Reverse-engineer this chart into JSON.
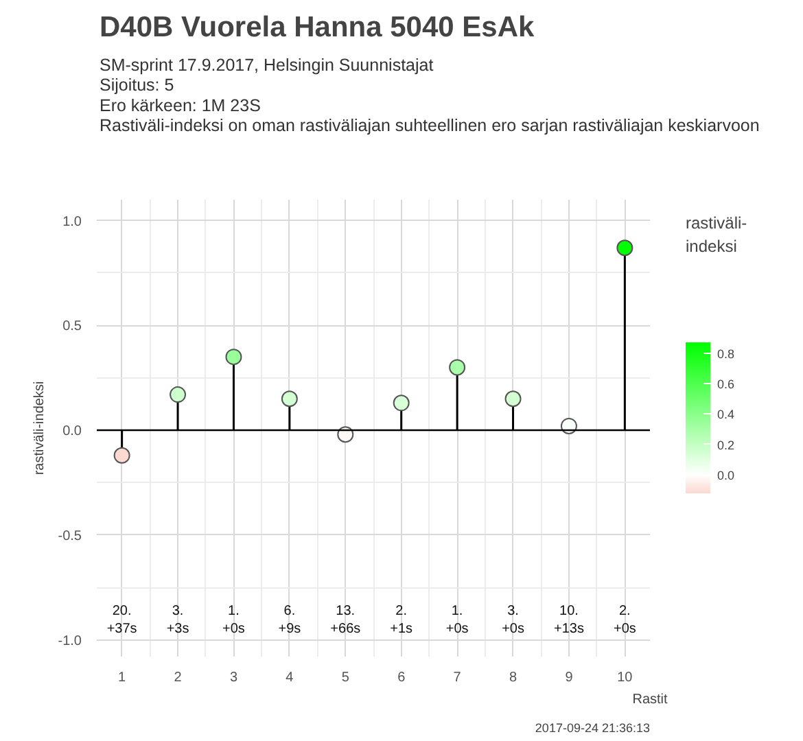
{
  "chart_data": {
    "type": "lollipop",
    "title": "D40B Vuorela Hanna 5040 EsAk",
    "subtitle": "SM-sprint 17.9.2017, Helsingin Suunnistajat\nSijoitus: 5\nEro kärkeen: 1M 23S\nRastiväli-indeksi on oman rastiväliajan suhteellinen ero sarjan rastiväliajan keskiarvoon",
    "xlabel": "Rastit",
    "ylabel": "rastiväli-indeksi",
    "clabel": "rastiväli-\nindeksi",
    "x": [
      1,
      2,
      3,
      4,
      5,
      6,
      7,
      8,
      9,
      10
    ],
    "values": [
      -0.12,
      0.17,
      0.35,
      0.15,
      -0.02,
      0.13,
      0.3,
      0.15,
      0.02,
      0.87
    ],
    "cvalues": [
      -0.12,
      0.17,
      0.35,
      0.15,
      -0.02,
      0.13,
      0.3,
      0.15,
      0.02,
      0.87
    ],
    "clim": [
      -0.12,
      0.87
    ],
    "cticks": [
      {
        "value": 0,
        "label": "0.0"
      },
      0.2,
      0.4,
      0.6,
      0.8
    ],
    "xlim": [
      0.55,
      10.45
    ],
    "xticks": [
      1,
      2,
      3,
      4,
      5,
      6,
      7,
      8,
      9,
      10
    ],
    "ylim": [
      -1.08,
      1.1
    ],
    "yticks": [
      {
        "value": -1,
        "label": "-1.0"
      },
      {
        "value": -0.5,
        "label": "-0.5"
      },
      {
        "value": 0,
        "label": "0.0"
      },
      {
        "value": 0.5,
        "label": "0.5"
      },
      {
        "value": 1,
        "label": "1.0"
      }
    ],
    "ref_lines": [
      {
        "axis": "y",
        "value": 0
      }
    ],
    "grid": true,
    "marker": "circle",
    "annotations": [
      "20.\n+37s",
      "3.\n+3s",
      "1.\n+0s",
      "6.\n+9s",
      "13.\n+66s",
      "2.\n+1s",
      "1.\n+0s",
      "3.\n+0s",
      "10.\n+13s",
      "2.\n+0s",
      "2017-09-24 21:36:13"
    ]
  }
}
